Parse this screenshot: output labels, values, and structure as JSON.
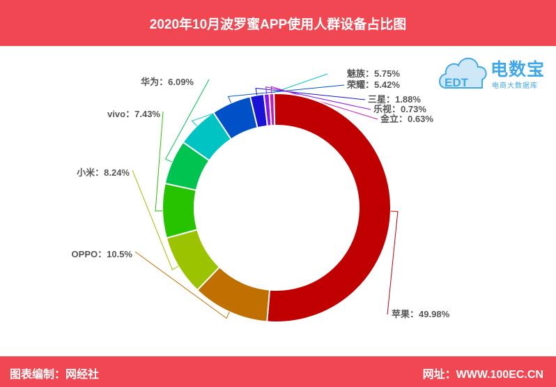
{
  "header": {
    "title": "2020年10月波罗蜜APP使用人群设备占比图"
  },
  "footer": {
    "left": "图表编制：网经社",
    "right": "网址：WWW.100EC.CN"
  },
  "logo": {
    "brand": "电数宝",
    "tagline": "电商大数据库",
    "badge": "EDT",
    "icon": "cloud-icon"
  },
  "chart_data": {
    "type": "donut",
    "title": "2020年10月波罗蜜APP使用人群设备占比图",
    "unit": "%",
    "label_separator": "：",
    "slices": [
      {
        "name": "魅族",
        "value": 5.75,
        "label": "5.75%",
        "color": "#00c3c3"
      },
      {
        "name": "荣耀",
        "value": 5.42,
        "label": "5.42%",
        "color": "#0050c8"
      },
      {
        "name": "三星",
        "value": 1.88,
        "label": "1.88%",
        "color": "#1a12d4"
      },
      {
        "name": "乐视",
        "value": 0.73,
        "label": "0.73%",
        "color": "#8a18e8"
      },
      {
        "name": "金立",
        "value": 0.63,
        "label": "0.63%",
        "color": "#c01eb4"
      },
      {
        "name": "苹果",
        "value": 49.98,
        "label": "49.98%",
        "color": "#c00000"
      },
      {
        "name": "OPPO",
        "value": 10.5,
        "label": "10.5%",
        "color": "#c07000"
      },
      {
        "name": "小米",
        "value": 8.24,
        "label": "8.24%",
        "color": "#9cc300"
      },
      {
        "name": "vivo",
        "value": 7.43,
        "label": "7.43%",
        "color": "#28c300"
      },
      {
        "name": "华为",
        "value": 6.09,
        "label": "6.09%",
        "color": "#00c350"
      }
    ]
  }
}
